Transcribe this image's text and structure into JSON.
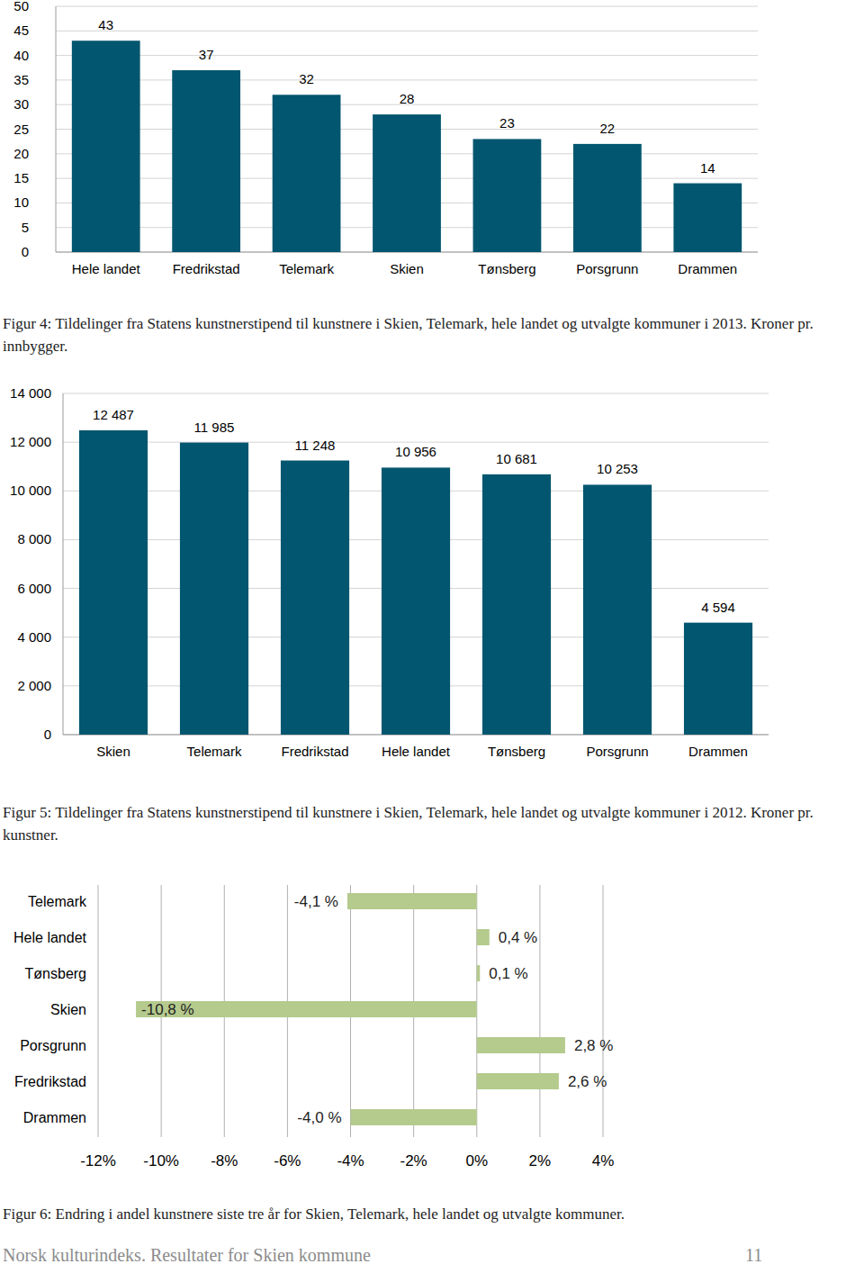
{
  "chart_data": [
    {
      "type": "bar",
      "title": "Figur 4: Tildelinger fra Statens kunstnerstipend til kunstnere i Skien, Telemark, hele landet og utvalgte kommuner i 2013. Kroner pr. innbygger.",
      "categories": [
        "Hele landet",
        "Fredrikstad",
        "Telemark",
        "Skien",
        "Tønsberg",
        "Porsgrunn",
        "Drammen"
      ],
      "values": [
        43,
        37,
        32,
        28,
        23,
        22,
        14
      ],
      "color": "#02566f",
      "ylim": [
        0,
        50
      ],
      "yticks": [
        0,
        5,
        10,
        15,
        20,
        25,
        30,
        35,
        40,
        45,
        50
      ],
      "grid": true,
      "data_labels": true
    },
    {
      "type": "bar",
      "title": "Figur 5: Tildelinger fra Statens kunstnerstipend til kunstnere i Skien, Telemark, hele landet og utvalgte kommuner i 2012. Kroner pr. kunstner.",
      "categories": [
        "Skien",
        "Telemark",
        "Fredrikstad",
        "Hele landet",
        "Tønsberg",
        "Porsgrunn",
        "Drammen"
      ],
      "values": [
        12487,
        11985,
        11248,
        10956,
        10681,
        10253,
        4594
      ],
      "value_labels": [
        "12 487",
        "11 985",
        "11 248",
        "10 956",
        "10 681",
        "10 253",
        "4 594"
      ],
      "color": "#02566f",
      "ylim": [
        0,
        14000
      ],
      "yticks": [
        {
          "value": 0,
          "label": "0"
        },
        {
          "value": 2000,
          "label": "2 000"
        },
        {
          "value": 4000,
          "label": "4 000"
        },
        {
          "value": 6000,
          "label": "6 000"
        },
        {
          "value": 8000,
          "label": "8 000"
        },
        {
          "value": 10000,
          "label": "10 000"
        },
        {
          "value": 12000,
          "label": "12 000"
        },
        {
          "value": 14000,
          "label": "14 000"
        }
      ],
      "grid": true,
      "data_labels": true
    },
    {
      "type": "bar",
      "orientation": "horizontal",
      "title": "Figur 6: Endring i andel kunstnere siste tre år for Skien, Telemark, hele landet og utvalgte kommuner.",
      "categories": [
        "Telemark",
        "Hele landet",
        "Tønsberg",
        "Skien",
        "Porsgrunn",
        "Fredrikstad",
        "Drammen"
      ],
      "values": [
        -4.1,
        0.4,
        0.1,
        -10.8,
        2.8,
        2.6,
        -4.0
      ],
      "value_labels": [
        "-4,1 %",
        "0,4 %",
        "0,1 %",
        "-10,8 %",
        "2,8 %",
        "2,6 %",
        "-4,0 %"
      ],
      "color": "#b5ca8d",
      "xlim": [
        -12,
        4
      ],
      "xticks": [
        {
          "value": -12,
          "label": "-12%"
        },
        {
          "value": -10,
          "label": "-10%"
        },
        {
          "value": -8,
          "label": "-8%"
        },
        {
          "value": -6,
          "label": "-6%"
        },
        {
          "value": -4,
          "label": "-4%"
        },
        {
          "value": -2,
          "label": "-2%"
        },
        {
          "value": 0,
          "label": "0%"
        },
        {
          "value": 2,
          "label": "2%"
        },
        {
          "value": 4,
          "label": "4%"
        }
      ],
      "grid": true,
      "data_labels": true
    }
  ],
  "footer": {
    "text": "Norsk kulturindeks. Resultater for Skien kommune",
    "page": "11"
  }
}
